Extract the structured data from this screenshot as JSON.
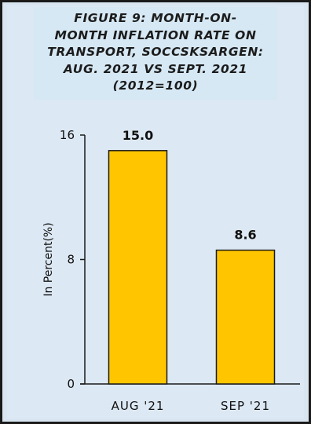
{
  "chart_data": {
    "type": "bar",
    "title": "FIGURE 9: MONTH-ON-\nMONTH INFLATION RATE ON\nTRANSPORT, SOCCSKSARGEN:\nAUG. 2021 VS SEPT. 2021\n(2012=100)",
    "xlabel": "",
    "ylabel": "In Percent(%)",
    "categories": [
      "AUG '21",
      "SEP '21"
    ],
    "values": [
      15.0,
      8.6
    ],
    "data_labels": [
      "15.0",
      "8.6"
    ],
    "ylim": [
      0,
      16
    ],
    "yticks": [
      0,
      8,
      16
    ],
    "ytick_labels": [
      "0",
      "8",
      "16"
    ],
    "grid": false,
    "legend": "none",
    "colors": {
      "bar_fill": "#ffc600",
      "bar_stroke": "#1a1a1a",
      "axis": "#1a1a1a",
      "background": "#dce8f3",
      "outer": "#f2c230"
    }
  }
}
